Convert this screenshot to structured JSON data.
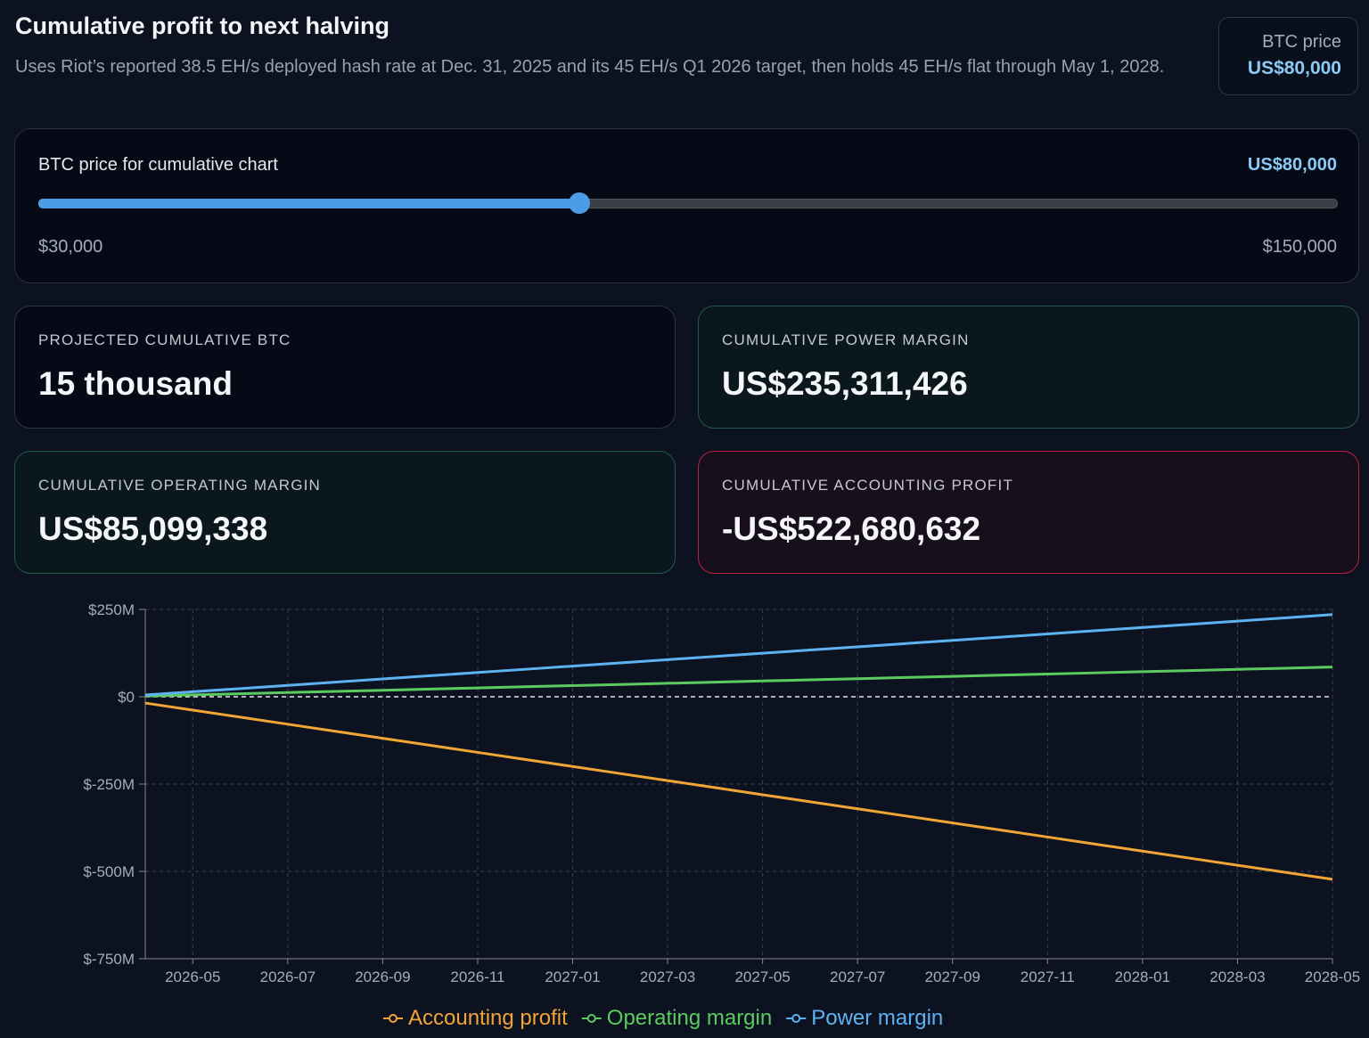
{
  "header": {
    "title": "Cumulative profit to next halving",
    "subtitle": "Uses Riot’s reported 38.5 EH/s deployed hash rate at Dec. 31, 2025 and its 45 EH/s Q1 2026 target, then holds 45 EH/s flat through May 1, 2028."
  },
  "price_badge": {
    "label": "BTC price",
    "value": "US$80,000"
  },
  "slider": {
    "label": "BTC price for cumulative chart",
    "value": {
      "value": 80000,
      "label": "US$80,000"
    },
    "min": {
      "value": 30000,
      "label": "$30,000"
    },
    "max": {
      "value": 150000,
      "label": "$150,000"
    }
  },
  "cards": [
    {
      "label": "PROJECTED CUMULATIVE BTC",
      "value": "15 thousand"
    },
    {
      "label": "CUMULATIVE POWER MARGIN",
      "value": "US$235,311,426"
    },
    {
      "label": "CUMULATIVE OPERATING MARGIN",
      "value": "US$85,099,338"
    },
    {
      "label": "CUMULATIVE ACCOUNTING PROFIT",
      "value": "-US$522,680,632"
    }
  ],
  "chart_data": {
    "type": "line",
    "x": [
      "2026-04",
      "2026-05",
      "2026-06",
      "2026-07",
      "2026-08",
      "2026-09",
      "2026-10",
      "2026-11",
      "2026-12",
      "2027-01",
      "2027-02",
      "2027-03",
      "2027-04",
      "2027-05",
      "2027-06",
      "2027-07",
      "2027-08",
      "2027-09",
      "2027-10",
      "2027-11",
      "2027-12",
      "2028-01",
      "2028-02",
      "2028-03",
      "2028-04",
      "2028-05"
    ],
    "xlim": [
      "2026-04",
      "2028-05"
    ],
    "xticks": [
      "2026-05",
      "2026-07",
      "2026-09",
      "2026-11",
      "2027-01",
      "2027-03",
      "2027-05",
      "2027-07",
      "2027-09",
      "2027-11",
      "2028-01",
      "2028-03",
      "2028-05"
    ],
    "ylim": [
      -750,
      250
    ],
    "yticks": [
      {
        "value": -750,
        "label": "$-750M"
      },
      {
        "value": -500,
        "label": "$-500M"
      },
      {
        "value": -250,
        "label": "$-250M"
      },
      {
        "value": 0,
        "label": "$0"
      },
      {
        "value": 250,
        "label": "$250M"
      }
    ],
    "grid": true,
    "series": [
      {
        "name": "Accounting profit",
        "color": "#f0a535",
        "values": [
          -18,
          -38.2,
          -58.4,
          -78.6,
          -98.8,
          -118.9,
          -139.1,
          -159.3,
          -179.5,
          -199.7,
          -219.9,
          -240.1,
          -260.3,
          -280.5,
          -300.7,
          -320.8,
          -341,
          -361.2,
          -381.4,
          -401.6,
          -421.8,
          -442,
          -462.2,
          -482.4,
          -502.6,
          -522.7
        ]
      },
      {
        "name": "Operating margin",
        "color": "#5ccb5f",
        "values": [
          2,
          5.3,
          8.6,
          12,
          15.3,
          18.6,
          21.9,
          25.2,
          28.6,
          31.9,
          35.2,
          38.5,
          41.8,
          45.2,
          48.5,
          51.8,
          55.1,
          58.4,
          61.8,
          65.1,
          68.4,
          71.7,
          75,
          78.4,
          81.7,
          85.1
        ]
      },
      {
        "name": "Power margin",
        "color": "#5eb2f2",
        "values": [
          5,
          14.2,
          23.4,
          32.6,
          41.8,
          51,
          60.2,
          69.4,
          78.6,
          87.8,
          97,
          106.2,
          115.4,
          124.6,
          133.8,
          143,
          152.2,
          161.4,
          170.6,
          179.8,
          189,
          198.2,
          207.4,
          216.6,
          225.8,
          235.3
        ]
      }
    ]
  }
}
